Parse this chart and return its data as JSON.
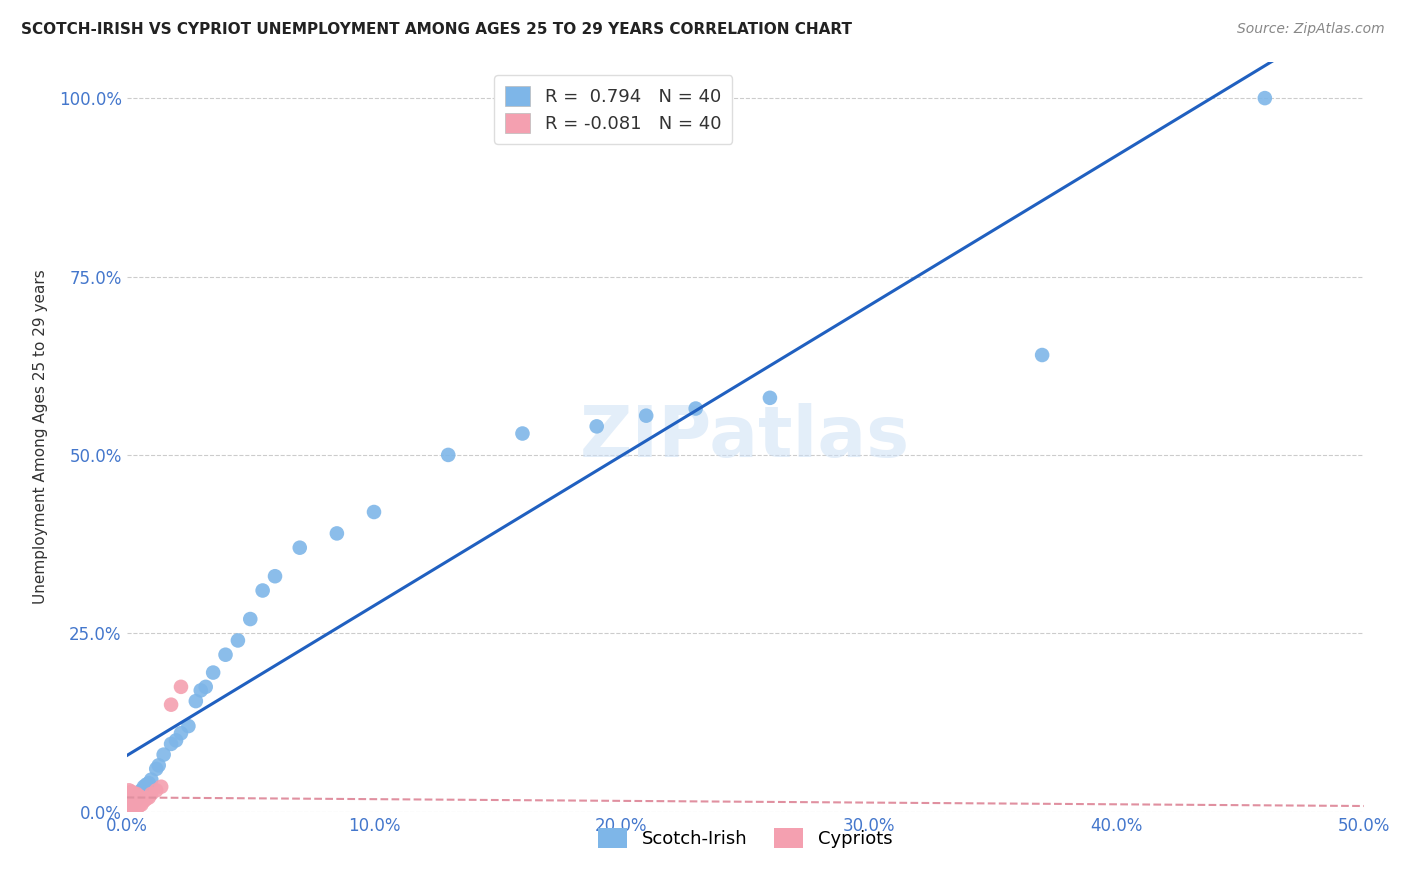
{
  "title": "SCOTCH-IRISH VS CYPRIOT UNEMPLOYMENT AMONG AGES 25 TO 29 YEARS CORRELATION CHART",
  "source": "Source: ZipAtlas.com",
  "ylabel": "Unemployment Among Ages 25 to 29 years",
  "xlim": [
    0.0,
    0.5
  ],
  "ylim": [
    0.0,
    1.05
  ],
  "xticks": [
    0.0,
    0.1,
    0.2,
    0.3,
    0.4,
    0.5
  ],
  "yticks": [
    0.0,
    0.25,
    0.5,
    0.75,
    1.0
  ],
  "xtick_labels": [
    "0.0%",
    "10.0%",
    "20.0%",
    "30.0%",
    "40.0%",
    "50.0%"
  ],
  "ytick_labels": [
    "0.0%",
    "25.0%",
    "50.0%",
    "75.0%",
    "100.0%"
  ],
  "grid_color": "#cccccc",
  "background_color": "#ffffff",
  "scotch_irish_color": "#7eb6e8",
  "cypriot_color": "#f4a0b0",
  "regression_scotch_color": "#2060c0",
  "regression_cypriot_color": "#e090a0",
  "scotch_irish_R": 0.794,
  "scotch_irish_N": 40,
  "cypriot_R": -0.081,
  "cypriot_N": 40,
  "legend_label_scotch": "Scotch-Irish",
  "legend_label_cypriot": "Cypriots",
  "watermark": "ZIPatlas",
  "scotch_irish_x": [
    0.001,
    0.002,
    0.002,
    0.003,
    0.003,
    0.004,
    0.004,
    0.005,
    0.006,
    0.007,
    0.008,
    0.009,
    0.01,
    0.012,
    0.013,
    0.015,
    0.018,
    0.02,
    0.022,
    0.025,
    0.028,
    0.03,
    0.032,
    0.035,
    0.04,
    0.045,
    0.05,
    0.055,
    0.06,
    0.07,
    0.085,
    0.1,
    0.13,
    0.16,
    0.19,
    0.21,
    0.23,
    0.26,
    0.37,
    0.46
  ],
  "scotch_irish_y": [
    0.005,
    0.008,
    0.01,
    0.012,
    0.015,
    0.018,
    0.02,
    0.025,
    0.03,
    0.035,
    0.038,
    0.04,
    0.045,
    0.06,
    0.065,
    0.08,
    0.095,
    0.1,
    0.11,
    0.12,
    0.155,
    0.17,
    0.175,
    0.195,
    0.22,
    0.24,
    0.27,
    0.31,
    0.33,
    0.37,
    0.39,
    0.42,
    0.5,
    0.53,
    0.54,
    0.555,
    0.565,
    0.58,
    0.64,
    1.0
  ],
  "cypriot_x": [
    0.001,
    0.001,
    0.001,
    0.001,
    0.001,
    0.001,
    0.001,
    0.001,
    0.001,
    0.002,
    0.002,
    0.002,
    0.002,
    0.002,
    0.002,
    0.002,
    0.003,
    0.003,
    0.003,
    0.003,
    0.003,
    0.003,
    0.004,
    0.004,
    0.004,
    0.004,
    0.004,
    0.005,
    0.005,
    0.005,
    0.006,
    0.006,
    0.007,
    0.008,
    0.009,
    0.01,
    0.012,
    0.014,
    0.018,
    0.022
  ],
  "cypriot_y": [
    0.005,
    0.008,
    0.01,
    0.012,
    0.015,
    0.018,
    0.02,
    0.025,
    0.03,
    0.005,
    0.008,
    0.012,
    0.015,
    0.018,
    0.022,
    0.028,
    0.005,
    0.008,
    0.012,
    0.016,
    0.02,
    0.025,
    0.005,
    0.01,
    0.015,
    0.02,
    0.025,
    0.008,
    0.015,
    0.022,
    0.01,
    0.02,
    0.015,
    0.018,
    0.02,
    0.025,
    0.03,
    0.035,
    0.15,
    0.175
  ]
}
